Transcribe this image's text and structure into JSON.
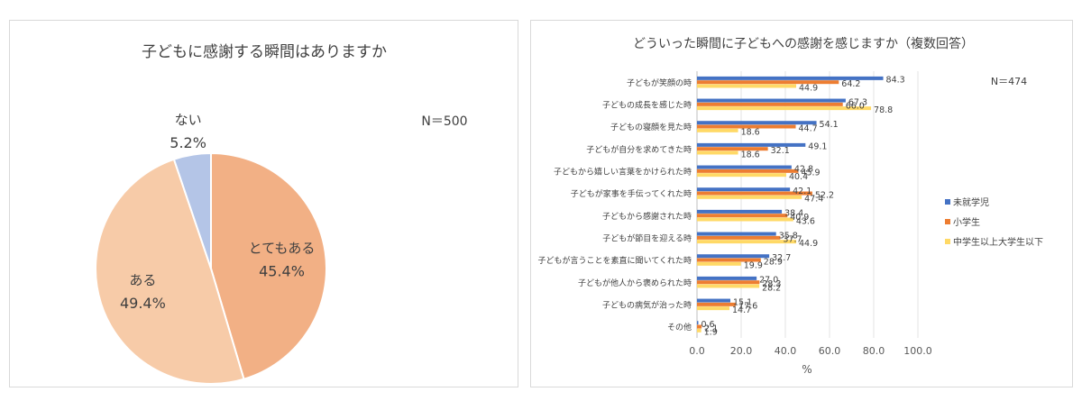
{
  "chart_data": [
    {
      "type": "pie",
      "title": "子どもに感謝する瞬間はありますか",
      "note": "N＝500",
      "slices": [
        {
          "label": "とてもある",
          "value": 45.4,
          "value_label": "45.4%",
          "color": "#f2b085"
        },
        {
          "label": "ある",
          "value": 49.4,
          "value_label": "49.4%",
          "color": "#f7cba8"
        },
        {
          "label": "ない",
          "value": 5.2,
          "value_label": "5.2%",
          "color": "#b4c5e7"
        }
      ]
    },
    {
      "type": "bar",
      "orientation": "horizontal",
      "title": "どういった瞬間に子どもへの感謝を感じますか（複数回答）",
      "note": "N＝474",
      "xlabel": "%",
      "xlim": [
        0,
        100
      ],
      "xticks": [
        "0.0",
        "20.0",
        "40.0",
        "60.0",
        "80.0",
        "100.0"
      ],
      "legend_position": "right",
      "categories": [
        "子どもが笑顔の時",
        "子どもの成長を感じた時",
        "子どもの寝顔を見た時",
        "子どもが自分を求めてきた時",
        "子どもから嬉しい言葉をかけられた時",
        "子どもが家事を手伝ってくれた時",
        "子どもから感謝された時",
        "子どもが節目を迎える時",
        "子どもが言うことを素直に聞いてくれた時",
        "子どもが他人から褒められた時",
        "子どもの病気が治った時",
        "その他"
      ],
      "series": [
        {
          "name": "未就学児",
          "color": "#4472c4",
          "values": [
            84.3,
            67.3,
            54.1,
            49.1,
            42.8,
            42.1,
            38.4,
            35.8,
            32.7,
            27.0,
            15.1,
            0.6
          ],
          "labels": [
            "84.3",
            "67.3",
            "54.1",
            "49.1",
            "42.8",
            "42.1",
            "38.4",
            "35.8",
            "32.7",
            "27.0",
            "15.1",
            "0.6"
          ]
        },
        {
          "name": "小学生",
          "color": "#ed7d31",
          "values": [
            64.2,
            66.0,
            44.7,
            32.1,
            45.9,
            52.2,
            40.9,
            37.7,
            28.9,
            28.3,
            17.6,
            2.1
          ],
          "labels": [
            "64.2",
            "66.0",
            "44.7",
            "32.1",
            "45.9",
            "52.2",
            "40.9",
            "37.7",
            "28.9",
            "28.3",
            "17.6",
            "2.1"
          ]
        },
        {
          "name": "中学生以上大学生以下",
          "color": "#ffd966",
          "values": [
            44.9,
            78.8,
            18.6,
            18.6,
            40.4,
            47.4,
            43.6,
            44.9,
            19.9,
            28.2,
            14.7,
            1.9
          ],
          "labels": [
            "44.9",
            "78.8",
            "18.6",
            "18.6",
            "40.4",
            "47.4",
            "43.6",
            "44.9",
            "19.9",
            "28.2",
            "14.7",
            "1.9"
          ]
        }
      ]
    }
  ]
}
